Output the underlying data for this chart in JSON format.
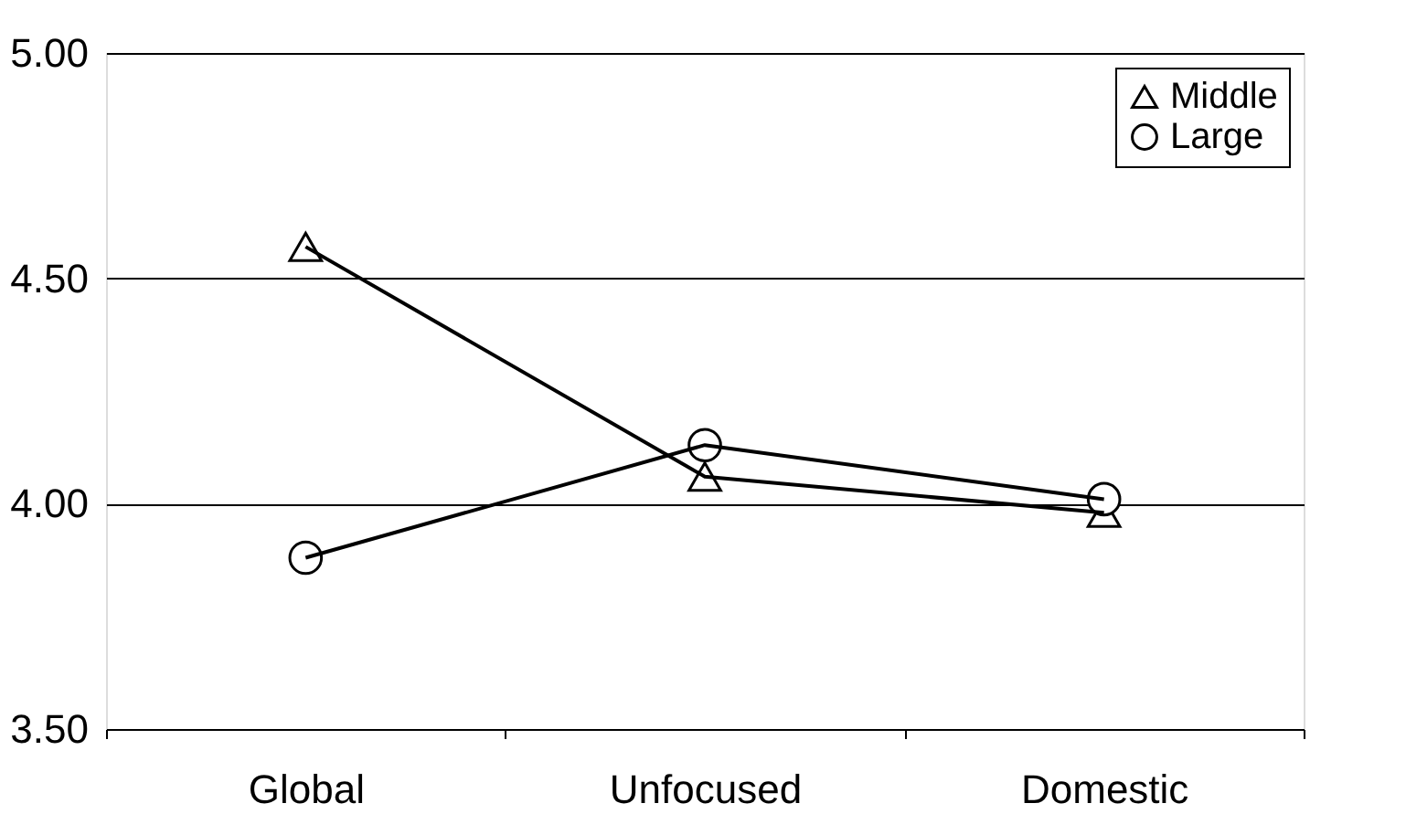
{
  "chart_data": {
    "type": "line",
    "categories": [
      "Global",
      "Unfocused",
      "Domestic"
    ],
    "series": [
      {
        "name": "Middle",
        "color": "#000000",
        "marker": "triangle",
        "values": [
          4.57,
          4.06,
          3.98
        ]
      },
      {
        "name": "Large",
        "color": "#000000",
        "marker": "circle",
        "values": [
          3.88,
          4.13,
          4.01
        ]
      }
    ],
    "ylim": [
      3.5,
      5.0
    ],
    "yticks": [
      {
        "value": 3.5,
        "label": "3.50"
      },
      {
        "value": 4.0,
        "label": "4.00"
      },
      {
        "value": 4.5,
        "label": "4.50"
      },
      {
        "value": 5.0,
        "label": "5.00"
      }
    ],
    "grid": "y",
    "legend": "top right",
    "line_style": "solid"
  }
}
